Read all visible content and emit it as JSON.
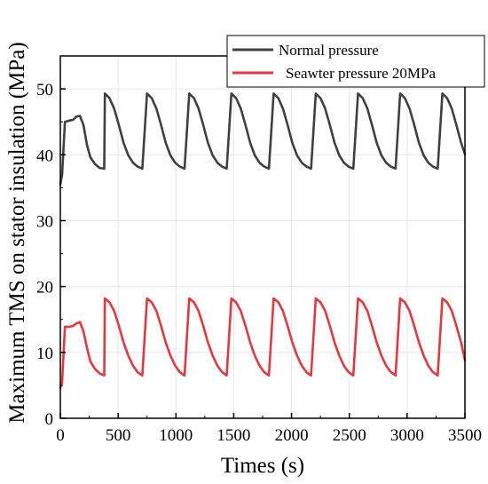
{
  "chart_data": {
    "type": "line",
    "title": "",
    "xlabel": "Times (s)",
    "ylabel": "Maximum TMS on stator insulation (MPa)",
    "xlim": [
      0,
      3500
    ],
    "ylim": [
      0,
      55
    ],
    "x_ticks": [
      "0",
      "500",
      "1000",
      "1500",
      "2000",
      "2500",
      "3000",
      "3500"
    ],
    "y_ticks": [
      "0",
      "10",
      "20",
      "30",
      "40",
      "50"
    ],
    "grid": true,
    "legend_position": "top-right",
    "period": 365,
    "series": [
      {
        "name": "Normal pressure",
        "color": "#404040",
        "start": [
          [
            0,
            35.5
          ],
          [
            15,
            37
          ],
          [
            40,
            45
          ],
          [
            80,
            45.2
          ],
          [
            110,
            45.3
          ],
          [
            140,
            45.8
          ],
          [
            170,
            45.9
          ],
          [
            200,
            44.5
          ],
          [
            230,
            41.5
          ],
          [
            260,
            39.6
          ],
          [
            300,
            38.6
          ],
          [
            340,
            38
          ],
          [
            380,
            37.9
          ]
        ],
        "cycle": {
          "peak": 49.3,
          "decay": [
            48.6,
            47,
            44.5,
            41.8,
            39.9,
            38.8,
            38.2,
            37.9
          ],
          "low": 37.9
        },
        "end": 40.1
      },
      {
        "name": "Seawter pressure 20MPa",
        "color": "#e8363c",
        "start": [
          [
            0,
            4.6
          ],
          [
            15,
            5.5
          ],
          [
            40,
            13.9
          ],
          [
            80,
            13.9
          ],
          [
            110,
            14.0
          ],
          [
            140,
            14.4
          ],
          [
            170,
            14.6
          ],
          [
            200,
            13.2
          ],
          [
            230,
            10.7
          ],
          [
            260,
            8.6
          ],
          [
            300,
            7.5
          ],
          [
            340,
            6.8
          ],
          [
            380,
            6.5
          ]
        ],
        "cycle": {
          "peak": 18.2,
          "decay": [
            17.6,
            16.3,
            14.0,
            11.5,
            9.5,
            8.0,
            7.0,
            6.5
          ],
          "low": 6.5
        },
        "end": 8.8
      }
    ]
  }
}
